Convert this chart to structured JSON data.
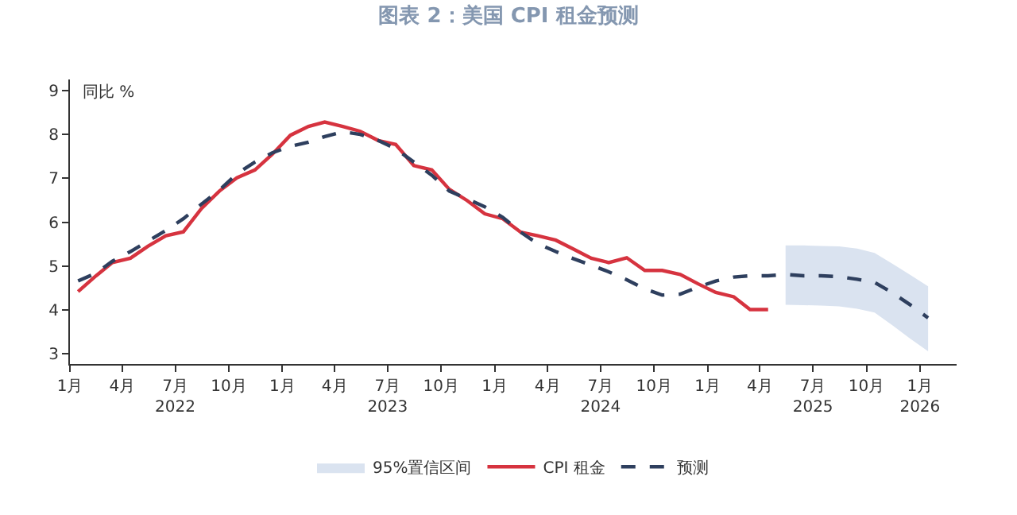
{
  "chart_data": {
    "type": "line",
    "title": "图表 2：美国 CPI 租金预测",
    "ylabel": "同比 %",
    "x": [
      "2022-01-15",
      "2022-02-15",
      "2022-03-15",
      "2022-04-15",
      "2022-05-15",
      "2022-06-15",
      "2022-07-15",
      "2022-08-15",
      "2022-09-15",
      "2022-10-15",
      "2022-11-15",
      "2022-12-15",
      "2023-01-15",
      "2023-02-15",
      "2023-03-15",
      "2023-04-15",
      "2023-05-15",
      "2023-06-15",
      "2023-07-15",
      "2023-08-15",
      "2023-09-15",
      "2023-10-15",
      "2023-11-15",
      "2023-12-15",
      "2024-01-15",
      "2024-02-15",
      "2024-03-15",
      "2024-04-15",
      "2024-05-15",
      "2024-06-15",
      "2024-07-15",
      "2024-08-15",
      "2024-09-15",
      "2024-10-15",
      "2024-11-15",
      "2024-12-15",
      "2025-01-15",
      "2025-02-15",
      "2025-03-15",
      "2025-04-15",
      "2025-05-15",
      "2025-06-15",
      "2025-07-15",
      "2025-08-15",
      "2025-09-15",
      "2025-10-15",
      "2025-11-15",
      "2025-12-15",
      "2026-01-15"
    ],
    "series": [
      {
        "name": "95%置信区间",
        "color": "#dae3f0",
        "x": [
          "2025-05-15",
          "2025-06-15",
          "2025-07-15",
          "2025-08-15",
          "2025-09-15",
          "2025-10-15",
          "2025-11-15",
          "2025-12-15",
          "2026-01-15"
        ],
        "values": [
          null,
          null,
          null,
          null,
          null,
          null,
          null,
          null,
          null
        ],
        "lower": [
          4.12,
          4.11,
          4.1,
          4.08,
          4.03,
          3.94,
          3.65,
          3.35,
          3.06
        ],
        "upper": [
          5.47,
          5.47,
          5.46,
          5.45,
          5.4,
          5.3,
          5.05,
          4.8,
          4.54
        ]
      },
      {
        "name": "CPI 租金",
        "color": "#d6333f",
        "line_style": "solid",
        "values": [
          4.42,
          4.78,
          5.08,
          5.18,
          5.45,
          5.69,
          5.78,
          6.31,
          6.71,
          7.01,
          7.19,
          7.55,
          7.98,
          8.18,
          8.28,
          8.18,
          8.07,
          7.86,
          7.77,
          7.29,
          7.19,
          6.75,
          6.49,
          6.19,
          6.08,
          5.77,
          5.69,
          5.59,
          5.39,
          5.18,
          5.08,
          5.19,
          4.9,
          4.9,
          4.81,
          4.6,
          4.4,
          4.3,
          4.01,
          4.01,
          null,
          null,
          null,
          null,
          null,
          null,
          null,
          null,
          null
        ]
      },
      {
        "name": "预测",
        "color": "#2e3f5e",
        "line_style": "dashed",
        "values": [
          4.66,
          4.84,
          5.11,
          5.33,
          5.57,
          5.81,
          6.08,
          6.41,
          6.73,
          7.1,
          7.37,
          7.58,
          7.73,
          7.82,
          7.95,
          8.06,
          8.0,
          7.86,
          7.67,
          7.37,
          7.07,
          6.71,
          6.53,
          6.35,
          6.11,
          5.77,
          5.51,
          5.33,
          5.17,
          5.02,
          4.87,
          4.69,
          4.48,
          4.34,
          4.36,
          4.52,
          4.66,
          4.75,
          4.78,
          4.78,
          4.81,
          4.78,
          4.78,
          4.76,
          4.7,
          4.63,
          4.39,
          4.12,
          3.82
        ]
      }
    ],
    "xlim": [
      "2022-01-01",
      "2026-03-05"
    ],
    "xticks": [
      {
        "value": "2022-01-01",
        "label": "1月"
      },
      {
        "value": "2022-04-01",
        "label": "4月"
      },
      {
        "value": "2022-07-01",
        "label": "7月\n2022"
      },
      {
        "value": "2022-10-01",
        "label": "10月"
      },
      {
        "value": "2023-01-01",
        "label": "1月"
      },
      {
        "value": "2023-04-01",
        "label": "4月"
      },
      {
        "value": "2023-07-01",
        "label": "7月\n2023"
      },
      {
        "value": "2023-10-01",
        "label": "10月"
      },
      {
        "value": "2024-01-01",
        "label": "1月"
      },
      {
        "value": "2024-04-01",
        "label": "4月"
      },
      {
        "value": "2024-07-01",
        "label": "7月\n2024"
      },
      {
        "value": "2024-10-01",
        "label": "10月"
      },
      {
        "value": "2025-01-01",
        "label": "1月"
      },
      {
        "value": "2025-04-01",
        "label": "4月"
      },
      {
        "value": "2025-07-01",
        "label": "7月\n2025"
      },
      {
        "value": "2025-10-01",
        "label": "10月"
      },
      {
        "value": "2026-01-01",
        "label": "1月\n2026"
      }
    ],
    "ylim": [
      2.77,
      9.25
    ],
    "yticks": [
      3,
      4,
      5,
      6,
      7,
      8,
      9
    ],
    "grid": false,
    "legend": "bottom",
    "marker": "none"
  }
}
